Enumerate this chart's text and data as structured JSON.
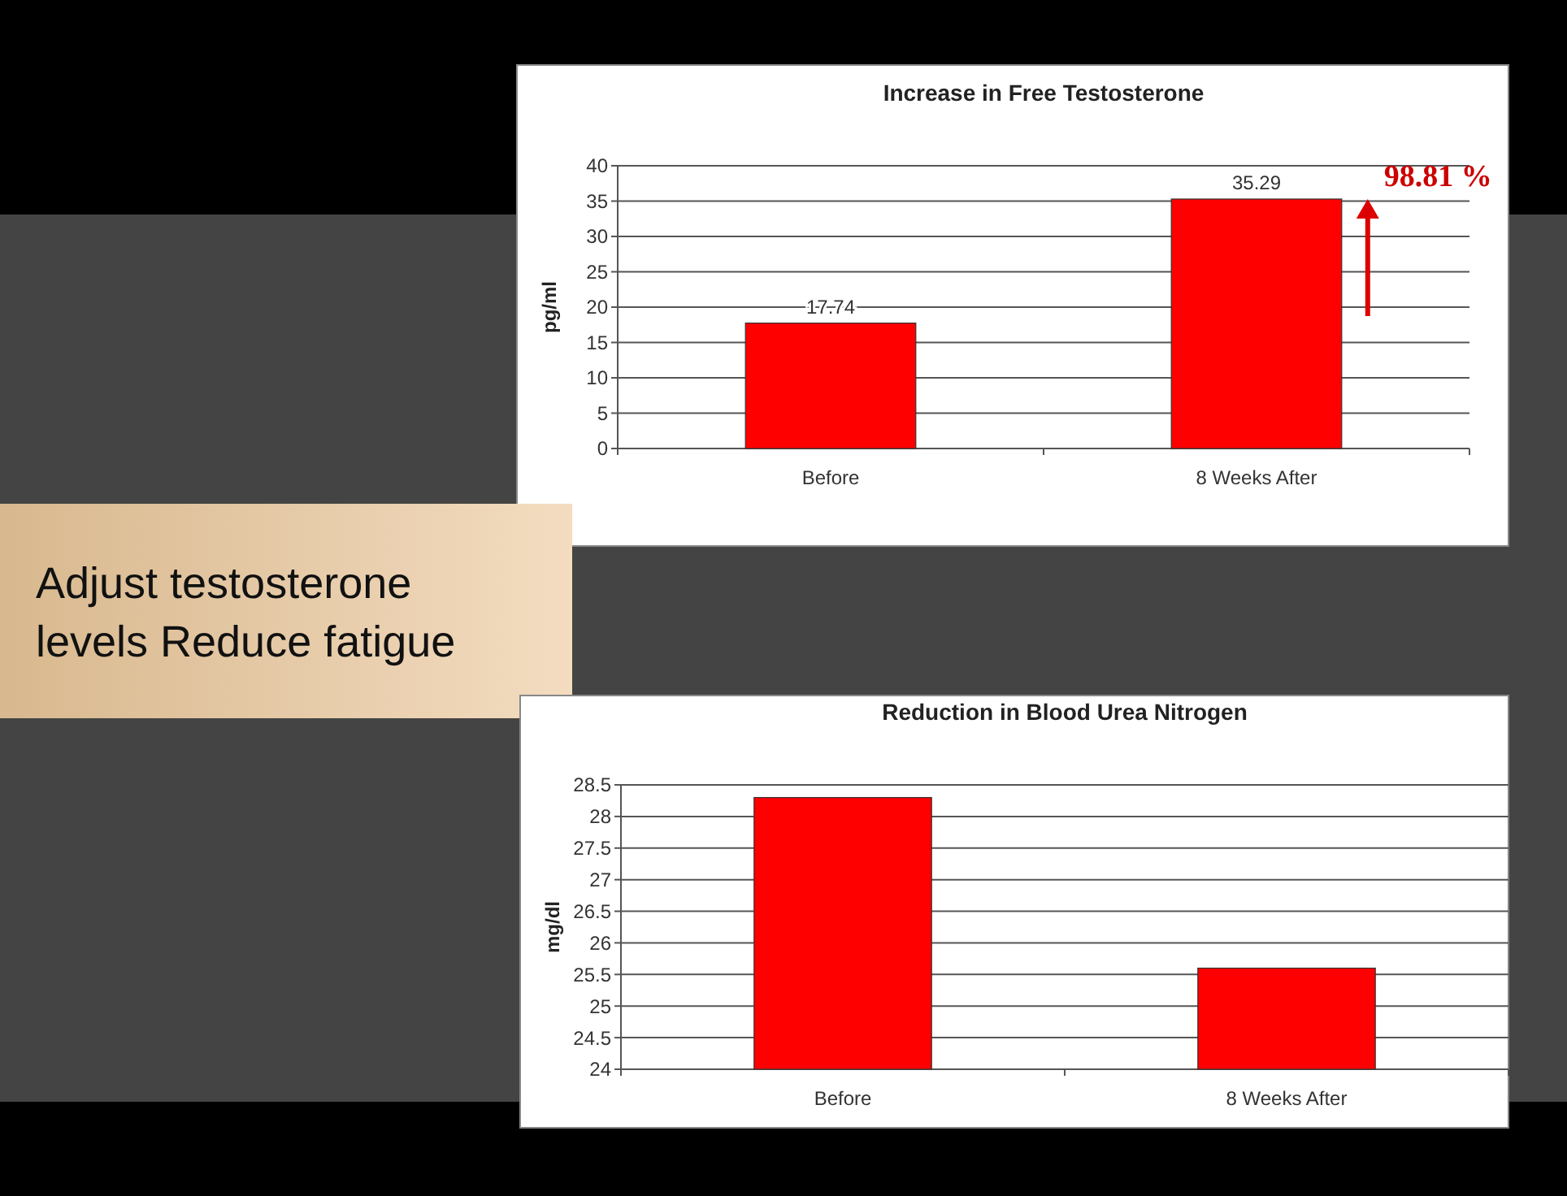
{
  "chart_data": [
    {
      "type": "bar",
      "title": "Increase in Free Testosterone",
      "ylabel": "pg/ml",
      "categories": [
        "Before",
        "8 Weeks After"
      ],
      "values": [
        17.74,
        35.29
      ],
      "color": "#ff0000",
      "ylim": [
        0,
        40
      ],
      "yticks": [
        0,
        5,
        10,
        15,
        20,
        25,
        30,
        35,
        40
      ],
      "grid": "y",
      "data_labels": true,
      "annotations": [
        "98.81 %"
      ]
    },
    {
      "type": "other",
      "title": "Adjust testosterone levels Reduce fatigue"
    },
    {
      "type": "bar",
      "title": "Reduction in Blood Urea Nitrogen",
      "ylabel": "mg/dl",
      "categories": [
        "Before",
        "8 Weeks After"
      ],
      "values": [
        28.3,
        25.6
      ],
      "color": "#ff0000",
      "ylim": [
        24,
        28.5
      ],
      "yticks": [
        24,
        24.5,
        25,
        25.5,
        26,
        26.5,
        27,
        27.5,
        28,
        28.5
      ],
      "grid": "y"
    }
  ]
}
